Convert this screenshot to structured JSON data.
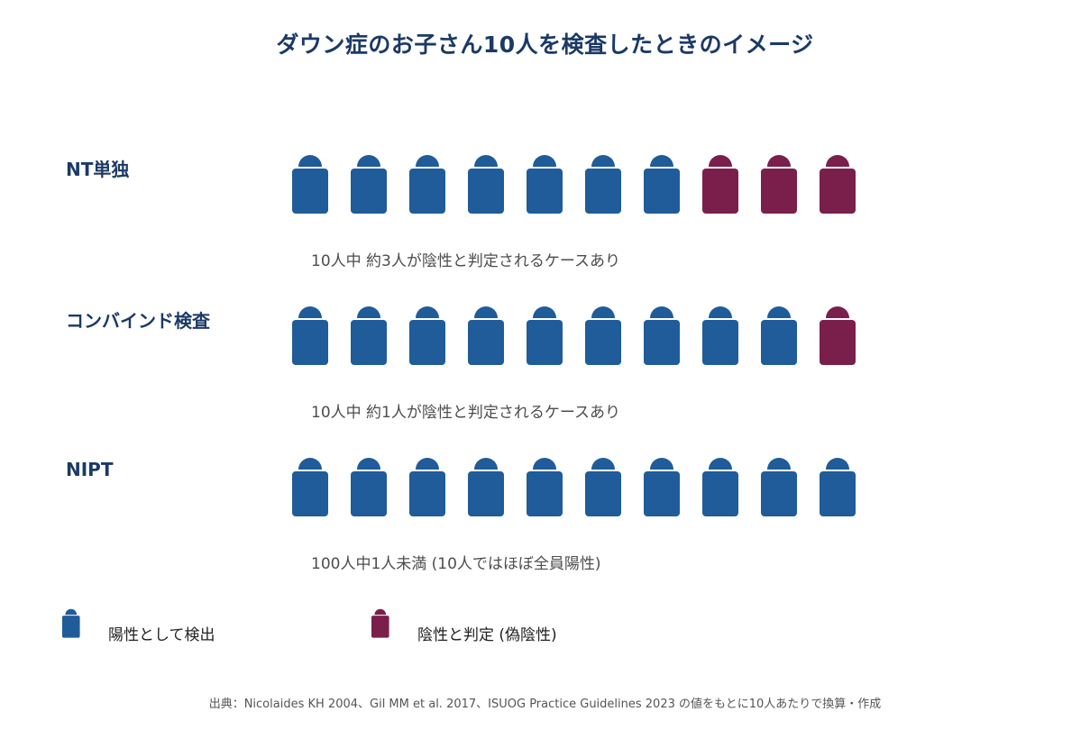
{
  "title": "ダウン症のお子さん10人を検査したときのイメージ",
  "colors": {
    "positive": "#1f5c99",
    "false_negative": "#7a1f4b",
    "title": "#1b3a66"
  },
  "chart_data": {
    "type": "pictograph",
    "unit": "人",
    "icons_per_row": 10,
    "rows": [
      {
        "label": "NT単独",
        "positive": 7,
        "false_negative": 3,
        "caption": "10人中 約3人が陰性と判定されるケースあり"
      },
      {
        "label": "コンバインド検査",
        "positive": 9,
        "false_negative": 1,
        "caption": "10人中 約1人が陰性と判定されるケースあり"
      },
      {
        "label": "NIPT",
        "positive": 10,
        "false_negative": 0,
        "caption": "100人中1人未満 (10人ではほぼ全員陽性)"
      }
    ],
    "legend": [
      {
        "key": "positive",
        "label": "陽性として検出"
      },
      {
        "key": "false_negative",
        "label": "陰性と判定 (偽陰性)"
      }
    ]
  },
  "source": "出典：Nicolaides KH 2004、Gil MM et al. 2017、ISUOG Practice Guidelines 2023 の値をもとに10人あたりで換算・作成"
}
